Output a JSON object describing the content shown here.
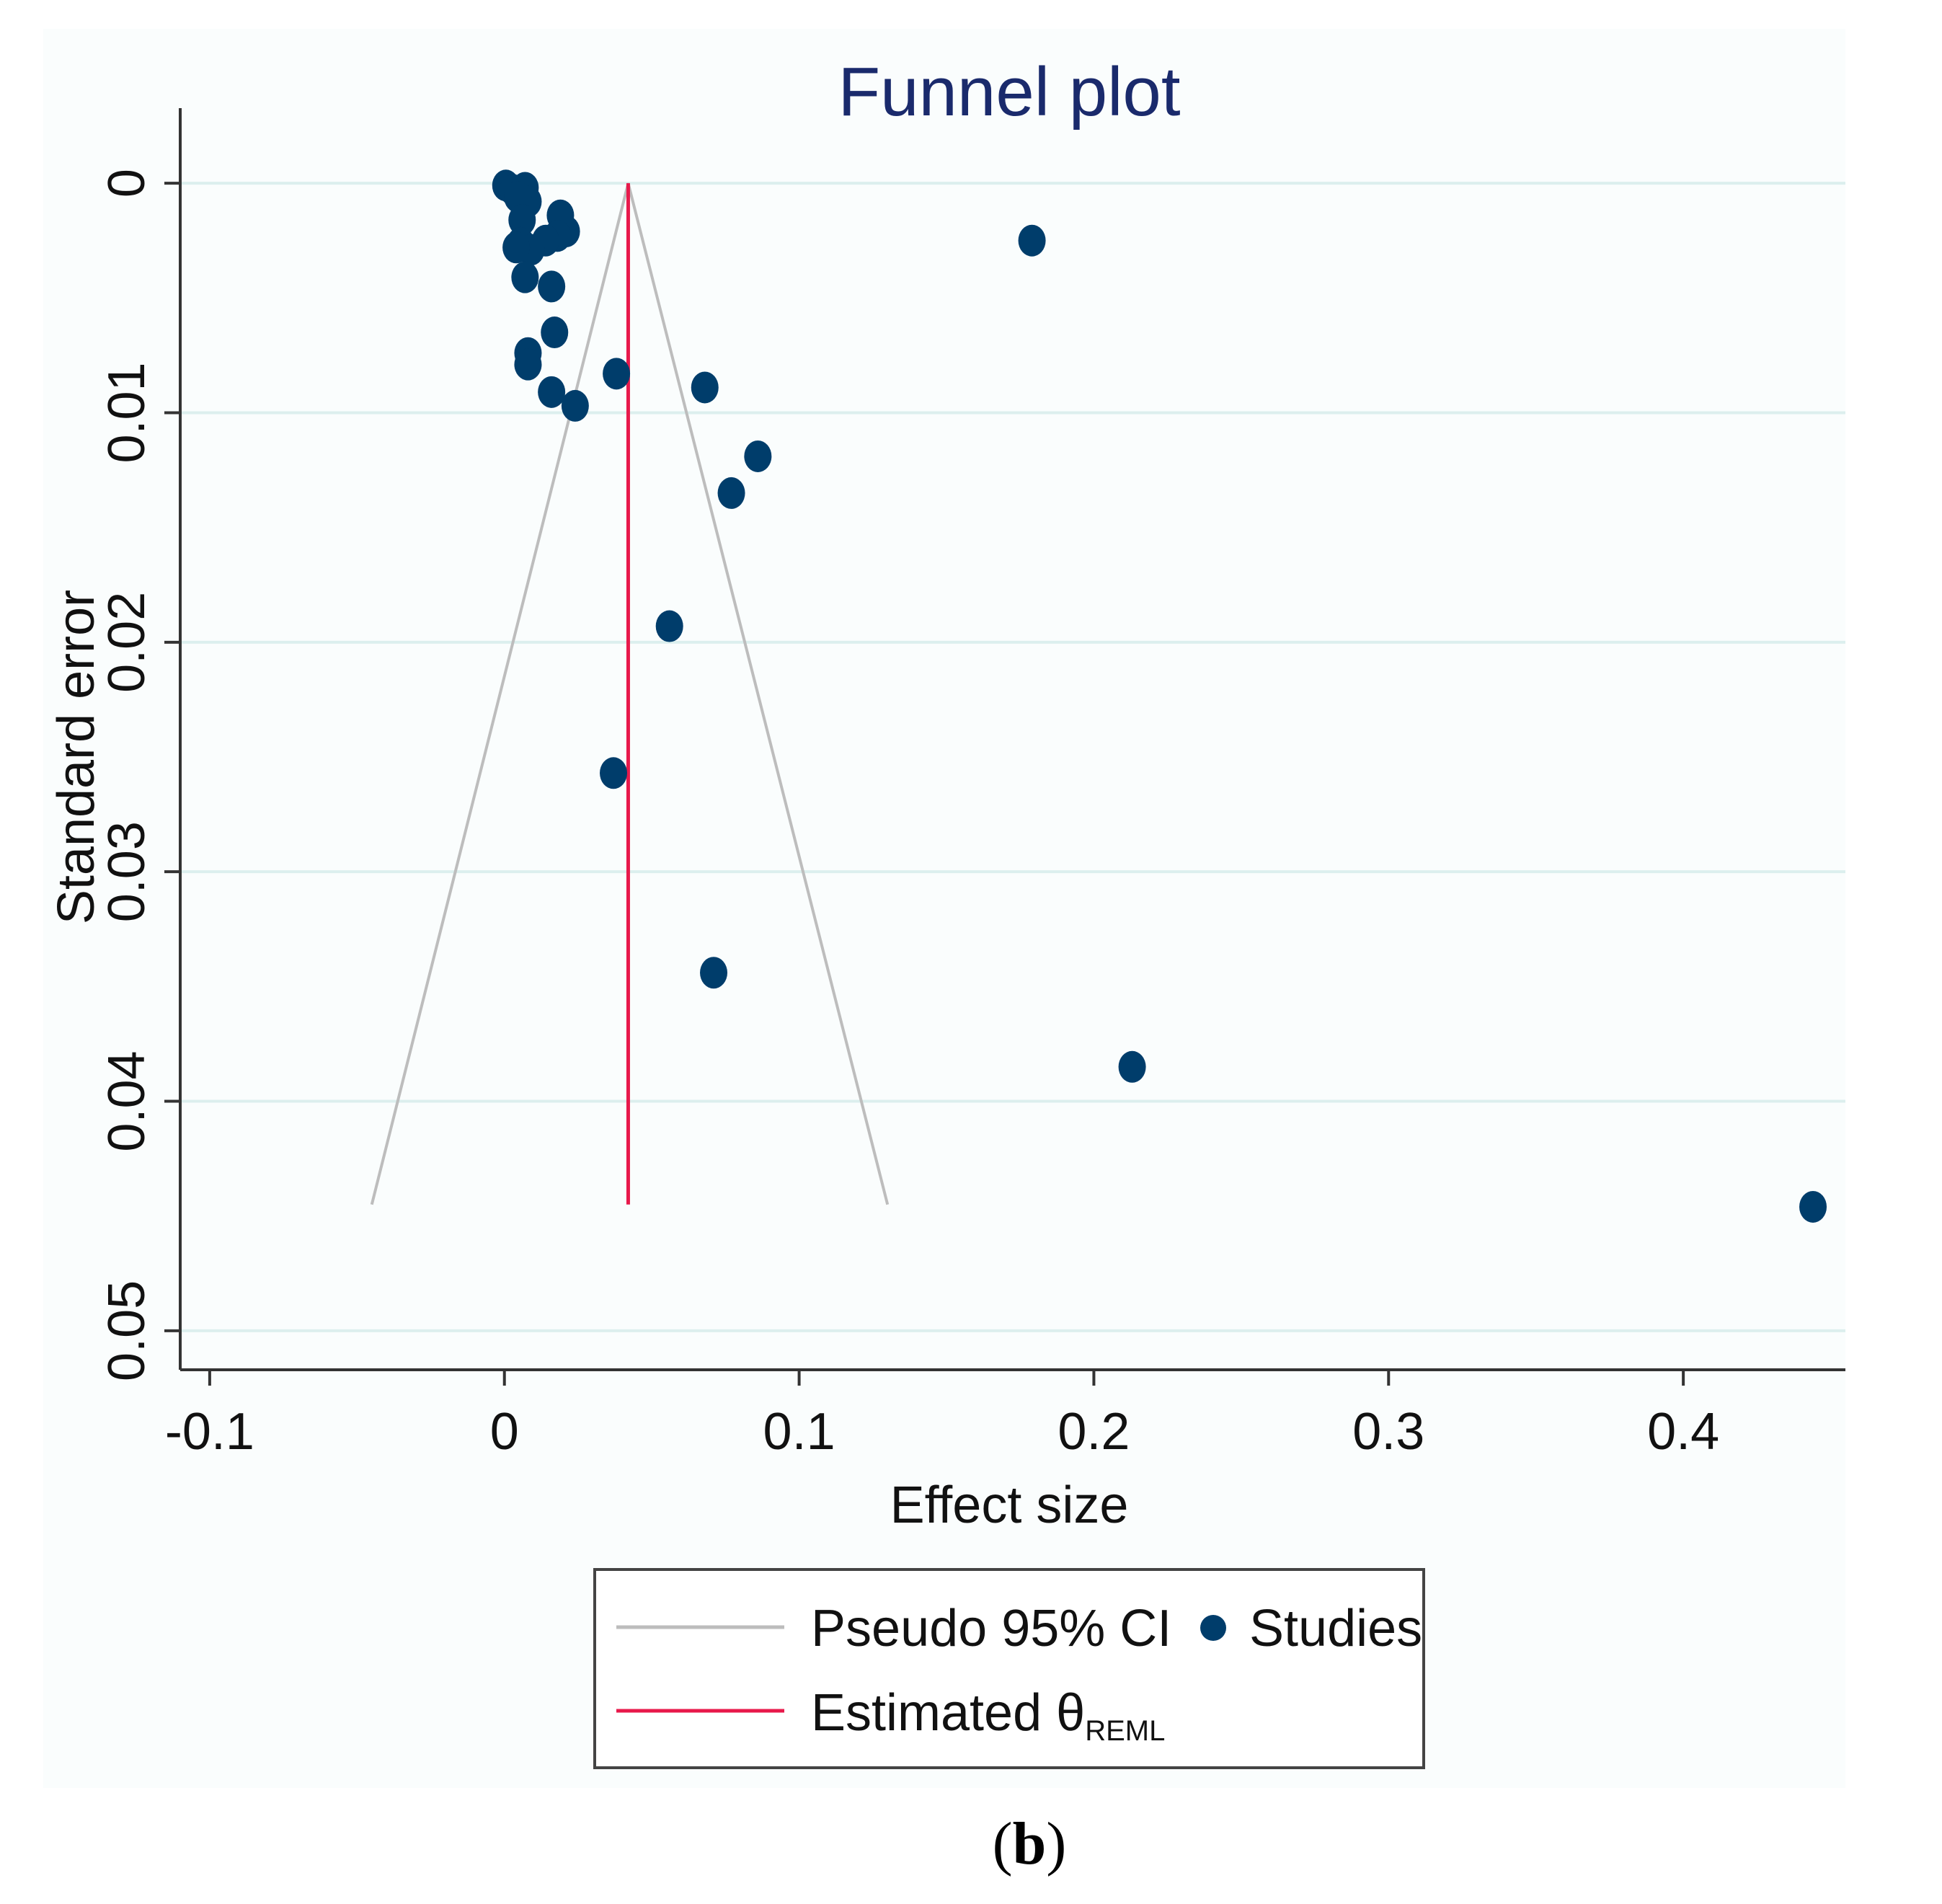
{
  "chart_data": {
    "type": "scatter",
    "title": "Funnel plot",
    "xlabel": "Effect size",
    "ylabel": "Standard error",
    "xlim": [
      -0.11,
      0.455
    ],
    "ylim": [
      0.0517,
      -0.0017
    ],
    "y_inverted": true,
    "xticks": [
      -0.1,
      0,
      0.1,
      0.2,
      0.3,
      0.4
    ],
    "xtick_labels": [
      "-0.1",
      "0",
      "0.1",
      "0.2",
      "0.3",
      "0.4"
    ],
    "yticks": [
      0,
      0.01,
      0.02,
      0.03,
      0.04,
      0.05
    ],
    "ytick_labels": [
      "0",
      "0.01",
      "0.02",
      "0.03",
      "0.04",
      "0.05"
    ],
    "grid": "horizontal",
    "estimate": 0.042,
    "funnel": {
      "apex": [
        0.042,
        0
      ],
      "left_bottom": [
        -0.045,
        0.0445
      ],
      "right_bottom": [
        0.13,
        0.0445
      ]
    },
    "series": [
      {
        "name": "Studies",
        "marker": "circle",
        "color": "#003d6b",
        "points": [
          [
            0.0005,
            0.0001
          ],
          [
            0.003,
            0.0003
          ],
          [
            0.0055,
            0.0005
          ],
          [
            0.007,
            0.0002
          ],
          [
            0.008,
            0.0008
          ],
          [
            0.0045,
            0.0006
          ],
          [
            0.006,
            0.0016
          ],
          [
            0.019,
            0.0014
          ],
          [
            0.021,
            0.0021
          ],
          [
            0.018,
            0.0023
          ],
          [
            0.014,
            0.0025
          ],
          [
            0.0055,
            0.0026
          ],
          [
            0.009,
            0.0029
          ],
          [
            0.004,
            0.0028
          ],
          [
            0.179,
            0.0025
          ],
          [
            0.007,
            0.0041
          ],
          [
            0.016,
            0.0045
          ],
          [
            0.017,
            0.0065
          ],
          [
            0.008,
            0.0074
          ],
          [
            0.008,
            0.0079
          ],
          [
            0.038,
            0.0083
          ],
          [
            0.068,
            0.0089
          ],
          [
            0.016,
            0.0091
          ],
          [
            0.024,
            0.0097
          ],
          [
            0.086,
            0.0119
          ],
          [
            0.077,
            0.0135
          ],
          [
            0.056,
            0.0193
          ],
          [
            0.037,
            0.0257
          ],
          [
            0.071,
            0.0344
          ],
          [
            0.213,
            0.0385
          ],
          [
            0.444,
            0.0446
          ]
        ]
      }
    ],
    "legend": {
      "placement": "bottom",
      "entries": [
        {
          "label": "Pseudo 95% CI",
          "symbol": "line",
          "color": "#bdbdbd"
        },
        {
          "label": "Studies",
          "symbol": "circle",
          "color": "#003d6b"
        },
        {
          "label": "Estimated θ",
          "subscript": "REML",
          "symbol": "line",
          "color": "#e8194b"
        }
      ]
    },
    "panel_label": {
      "open": "(",
      "letter": "b",
      "close": ")"
    }
  }
}
